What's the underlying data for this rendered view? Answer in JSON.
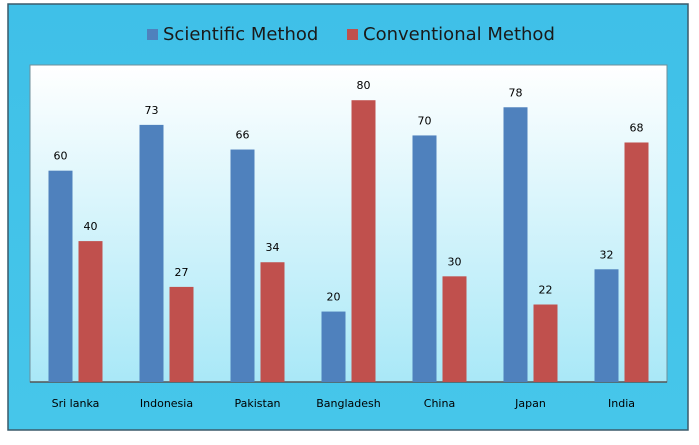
{
  "chart_data": {
    "type": "bar",
    "categories": [
      "Sri lanka",
      "Indonesia",
      "Pakistan",
      "Bangladesh",
      "China",
      "Japan",
      "India"
    ],
    "series": [
      {
        "name": "Scientific Method",
        "color": "#4f81bd",
        "values": [
          60,
          73,
          66,
          20,
          70,
          78,
          32
        ]
      },
      {
        "name": "Conventional Method",
        "color": "#c0504d",
        "values": [
          40,
          27,
          34,
          80,
          30,
          22,
          68
        ]
      }
    ],
    "ylim": [
      0,
      90
    ],
    "legend": "top"
  }
}
